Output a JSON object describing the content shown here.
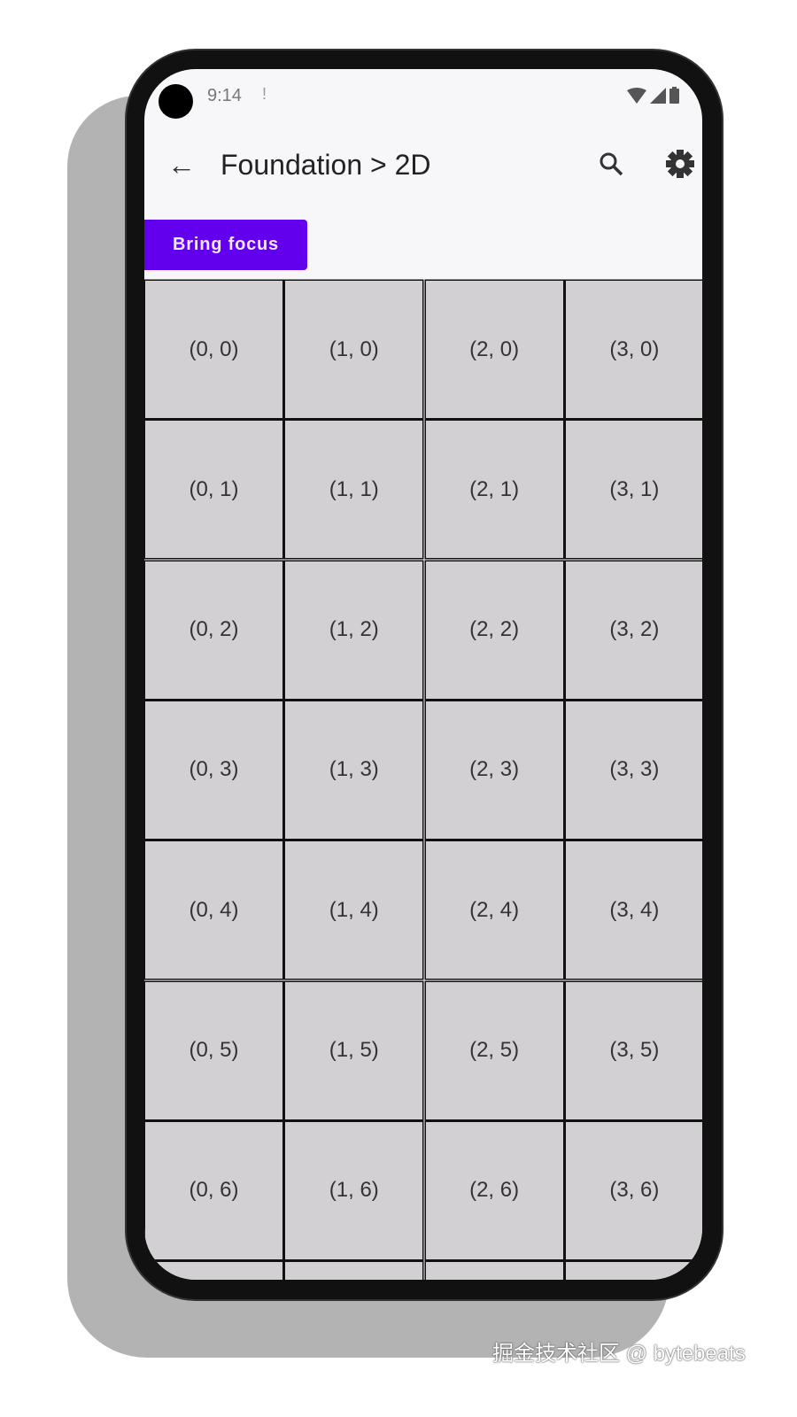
{
  "status_bar": {
    "time": "9:14",
    "notification_icon": "alert-icon",
    "icons": [
      "wifi-icon",
      "signal-icon",
      "battery-icon"
    ]
  },
  "app_bar": {
    "title": "Foundation > 2D",
    "back_icon": "arrow-left-icon",
    "search_icon": "search-icon",
    "settings_icon": "gear-icon"
  },
  "bring_focus_button": {
    "label": "Bring focus",
    "color": "#6200ee"
  },
  "grid": {
    "columns": 4,
    "cells": [
      [
        "(0, 0)",
        "(1, 0)",
        "(2, 0)",
        "(3, 0)"
      ],
      [
        "(0, 1)",
        "(1, 1)",
        "(2, 1)",
        "(3, 1)"
      ],
      [
        "(0, 2)",
        "(1, 2)",
        "(2, 2)",
        "(3, 2)"
      ],
      [
        "(0, 3)",
        "(1, 3)",
        "(2, 3)",
        "(3, 3)"
      ],
      [
        "(0, 4)",
        "(1, 4)",
        "(2, 4)",
        "(3, 4)"
      ],
      [
        "(0, 5)",
        "(1, 5)",
        "(2, 5)",
        "(3, 5)"
      ],
      [
        "(0, 6)",
        "(1, 6)",
        "(2, 6)",
        "(3, 6)"
      ],
      [
        "",
        "",
        "",
        ""
      ]
    ]
  },
  "watermark": "掘金技术社区 @ bytebeats"
}
